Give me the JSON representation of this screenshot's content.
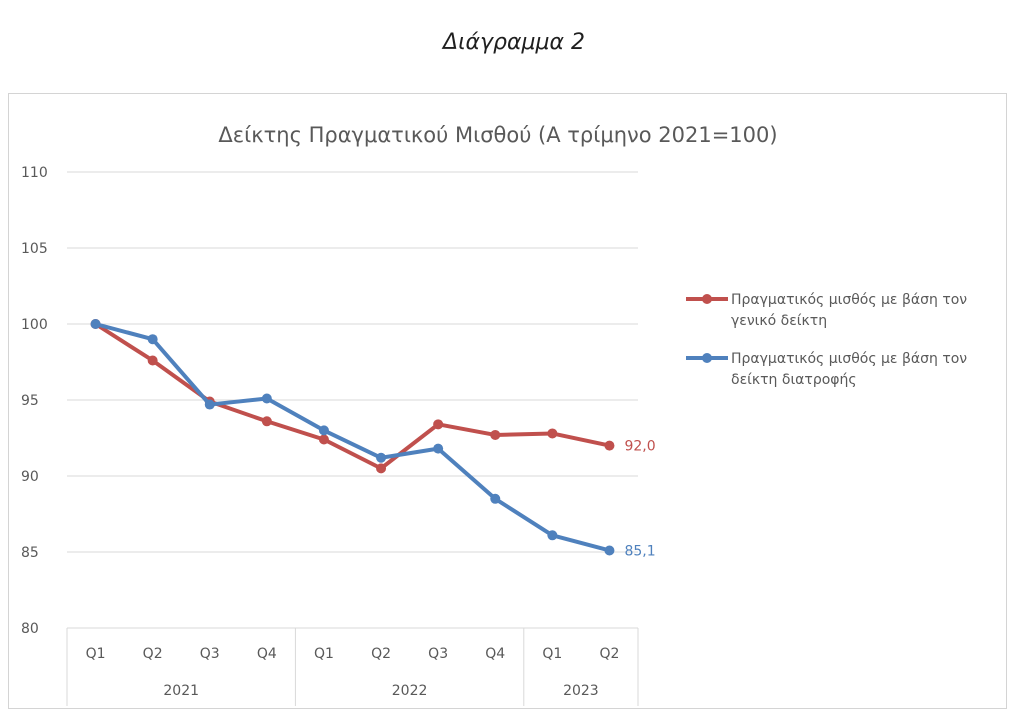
{
  "page": {
    "caption": "Διάγραμμα 2"
  },
  "chart_data": {
    "type": "line",
    "title": "Δείκτης Πραγματικού Μισθού (Α τρίμηνο 2021=100)",
    "xlabel": "",
    "ylabel": "",
    "ylim": [
      80,
      110
    ],
    "yticks": [
      80,
      85,
      90,
      95,
      100,
      105,
      110
    ],
    "grid": true,
    "legend_position": "right",
    "categories": [
      "Q1",
      "Q2",
      "Q3",
      "Q4",
      "Q1",
      "Q2",
      "Q3",
      "Q4",
      "Q1",
      "Q2"
    ],
    "groups": [
      {
        "label": "2021",
        "count": 4
      },
      {
        "label": "2022",
        "count": 4
      },
      {
        "label": "2023",
        "count": 2
      }
    ],
    "series": [
      {
        "name_lines": [
          "Πραγματικός μισθός με βάση τον",
          "γενικό δείκτη"
        ],
        "color": "#c0504d",
        "values": [
          100,
          97.6,
          94.9,
          93.6,
          92.4,
          90.5,
          93.4,
          92.7,
          92.8,
          92.0
        ],
        "end_label": "92,0"
      },
      {
        "name_lines": [
          "Πραγματικός μισθός με βάση τον",
          "δείκτη διατροφής"
        ],
        "color": "#4f81bd",
        "values": [
          100,
          99.0,
          94.7,
          95.1,
          93.0,
          91.2,
          91.8,
          88.5,
          86.1,
          85.1
        ],
        "end_label": "85,1"
      }
    ]
  }
}
